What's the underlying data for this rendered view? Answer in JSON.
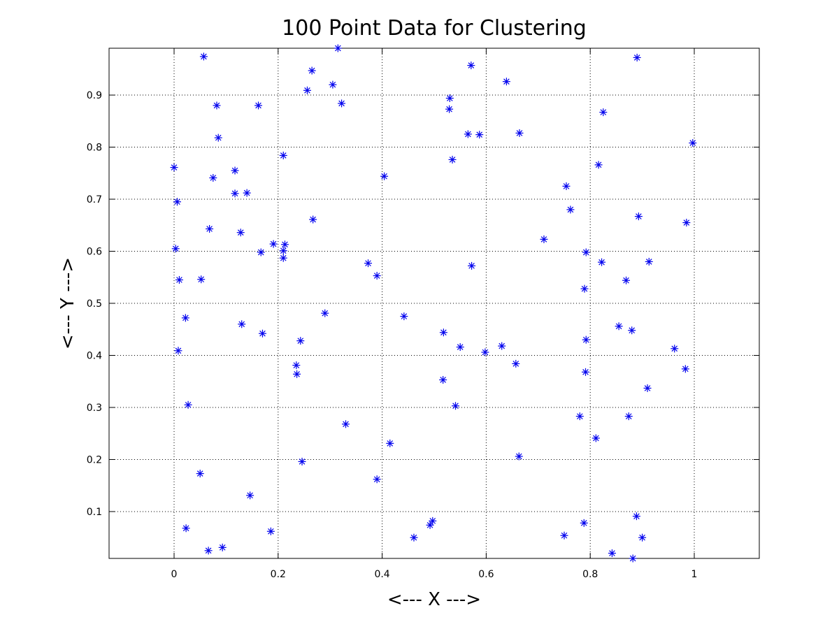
{
  "chart_data": {
    "type": "scatter",
    "title": "100 Point Data for Clustering",
    "xlabel": "<--- X --->",
    "ylabel": "<--- Y --->",
    "xlim": [
      -0.125,
      1.125
    ],
    "ylim": [
      0.01,
      0.99
    ],
    "xticks": [
      0,
      0.2,
      0.4,
      0.6,
      0.8,
      1
    ],
    "xtick_labels": [
      "0",
      "0.2",
      "0.4",
      "0.6",
      "0.8",
      "1"
    ],
    "yticks": [
      0.1,
      0.2,
      0.3,
      0.4,
      0.5,
      0.6,
      0.7,
      0.8,
      0.9
    ],
    "ytick_labels": [
      "0.1",
      "0.2",
      "0.3",
      "0.4",
      "0.5",
      "0.6",
      "0.7",
      "0.8",
      "0.9"
    ],
    "grid": true,
    "marker": "asterisk",
    "marker_color": "#0000ee",
    "points": [
      [
        0.057,
        0.974
      ],
      [
        0.265,
        0.947
      ],
      [
        0.315,
        0.99
      ],
      [
        0.89,
        0.972
      ],
      [
        0.571,
        0.957
      ],
      [
        0.305,
        0.92
      ],
      [
        0.256,
        0.909
      ],
      [
        0.639,
        0.926
      ],
      [
        0.53,
        0.894
      ],
      [
        0.082,
        0.88
      ],
      [
        0.162,
        0.88
      ],
      [
        0.322,
        0.884
      ],
      [
        0.529,
        0.873
      ],
      [
        0.825,
        0.867
      ],
      [
        0.565,
        0.825
      ],
      [
        0.587,
        0.824
      ],
      [
        0.664,
        0.827
      ],
      [
        0.085,
        0.818
      ],
      [
        0.21,
        0.784
      ],
      [
        0.997,
        0.808
      ],
      [
        0.535,
        0.776
      ],
      [
        0.816,
        0.766
      ],
      [
        0.0,
        0.761
      ],
      [
        0.117,
        0.755
      ],
      [
        0.075,
        0.741
      ],
      [
        0.404,
        0.744
      ],
      [
        0.754,
        0.725
      ],
      [
        0.117,
        0.711
      ],
      [
        0.14,
        0.712
      ],
      [
        0.006,
        0.695
      ],
      [
        0.762,
        0.68
      ],
      [
        0.267,
        0.661
      ],
      [
        0.893,
        0.667
      ],
      [
        0.985,
        0.655
      ],
      [
        0.068,
        0.643
      ],
      [
        0.128,
        0.636
      ],
      [
        0.711,
        0.623
      ],
      [
        0.191,
        0.614
      ],
      [
        0.213,
        0.613
      ],
      [
        0.003,
        0.605
      ],
      [
        0.167,
        0.598
      ],
      [
        0.21,
        0.601
      ],
      [
        0.792,
        0.598
      ],
      [
        0.21,
        0.587
      ],
      [
        0.373,
        0.577
      ],
      [
        0.572,
        0.572
      ],
      [
        0.822,
        0.579
      ],
      [
        0.913,
        0.58
      ],
      [
        0.39,
        0.553
      ],
      [
        0.01,
        0.545
      ],
      [
        0.052,
        0.546
      ],
      [
        0.869,
        0.544
      ],
      [
        0.789,
        0.528
      ],
      [
        0.29,
        0.481
      ],
      [
        0.022,
        0.472
      ],
      [
        0.442,
        0.475
      ],
      [
        0.13,
        0.46
      ],
      [
        0.855,
        0.456
      ],
      [
        0.518,
        0.444
      ],
      [
        0.88,
        0.448
      ],
      [
        0.17,
        0.442
      ],
      [
        0.243,
        0.428
      ],
      [
        0.792,
        0.43
      ],
      [
        0.55,
        0.416
      ],
      [
        0.63,
        0.418
      ],
      [
        0.962,
        0.413
      ],
      [
        0.008,
        0.409
      ],
      [
        0.598,
        0.406
      ],
      [
        0.235,
        0.381
      ],
      [
        0.657,
        0.384
      ],
      [
        0.983,
        0.374
      ],
      [
        0.791,
        0.368
      ],
      [
        0.236,
        0.364
      ],
      [
        0.517,
        0.353
      ],
      [
        0.91,
        0.337
      ],
      [
        0.027,
        0.305
      ],
      [
        0.541,
        0.303
      ],
      [
        0.78,
        0.283
      ],
      [
        0.874,
        0.283
      ],
      [
        0.33,
        0.268
      ],
      [
        0.811,
        0.241
      ],
      [
        0.415,
        0.231
      ],
      [
        0.663,
        0.206
      ],
      [
        0.246,
        0.196
      ],
      [
        0.05,
        0.173
      ],
      [
        0.39,
        0.162
      ],
      [
        0.146,
        0.131
      ],
      [
        0.889,
        0.091
      ],
      [
        0.497,
        0.082
      ],
      [
        0.788,
        0.078
      ],
      [
        0.023,
        0.068
      ],
      [
        0.492,
        0.074
      ],
      [
        0.186,
        0.062
      ],
      [
        0.75,
        0.054
      ],
      [
        0.461,
        0.05
      ],
      [
        0.9,
        0.05
      ],
      [
        0.093,
        0.031
      ],
      [
        0.066,
        0.025
      ],
      [
        0.842,
        0.02
      ],
      [
        0.882,
        0.01
      ]
    ]
  }
}
